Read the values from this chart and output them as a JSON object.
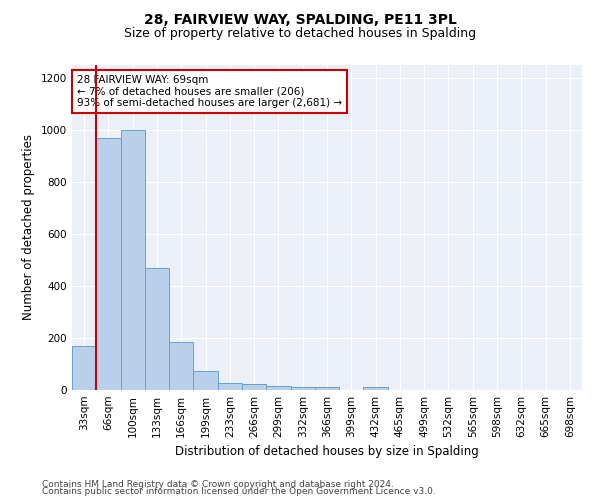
{
  "title1": "28, FAIRVIEW WAY, SPALDING, PE11 3PL",
  "title2": "Size of property relative to detached houses in Spalding",
  "xlabel": "Distribution of detached houses by size in Spalding",
  "ylabel": "Number of detached properties",
  "categories": [
    "33sqm",
    "66sqm",
    "100sqm",
    "133sqm",
    "166sqm",
    "199sqm",
    "233sqm",
    "266sqm",
    "299sqm",
    "332sqm",
    "366sqm",
    "399sqm",
    "432sqm",
    "465sqm",
    "499sqm",
    "532sqm",
    "565sqm",
    "598sqm",
    "632sqm",
    "665sqm",
    "698sqm"
  ],
  "values": [
    170,
    970,
    1000,
    470,
    185,
    75,
    27,
    22,
    15,
    10,
    13,
    0,
    13,
    0,
    0,
    0,
    0,
    0,
    0,
    0,
    0
  ],
  "bar_color": "#b8d0ea",
  "bar_edge_color": "#6aa0cc",
  "marker_color": "#cc0000",
  "annotation_text": "28 FAIRVIEW WAY: 69sqm\n← 7% of detached houses are smaller (206)\n93% of semi-detached houses are larger (2,681) →",
  "annotation_box_color": "#ffffff",
  "annotation_border_color": "#cc0000",
  "ylim": [
    0,
    1250
  ],
  "yticks": [
    0,
    200,
    400,
    600,
    800,
    1000,
    1200
  ],
  "background_color": "#eaeff8",
  "footer_line1": "Contains HM Land Registry data © Crown copyright and database right 2024.",
  "footer_line2": "Contains public sector information licensed under the Open Government Licence v3.0.",
  "title1_fontsize": 10,
  "title2_fontsize": 9,
  "axis_label_fontsize": 8.5,
  "tick_fontsize": 7.5,
  "annotation_fontsize": 7.5,
  "footer_fontsize": 6.5
}
